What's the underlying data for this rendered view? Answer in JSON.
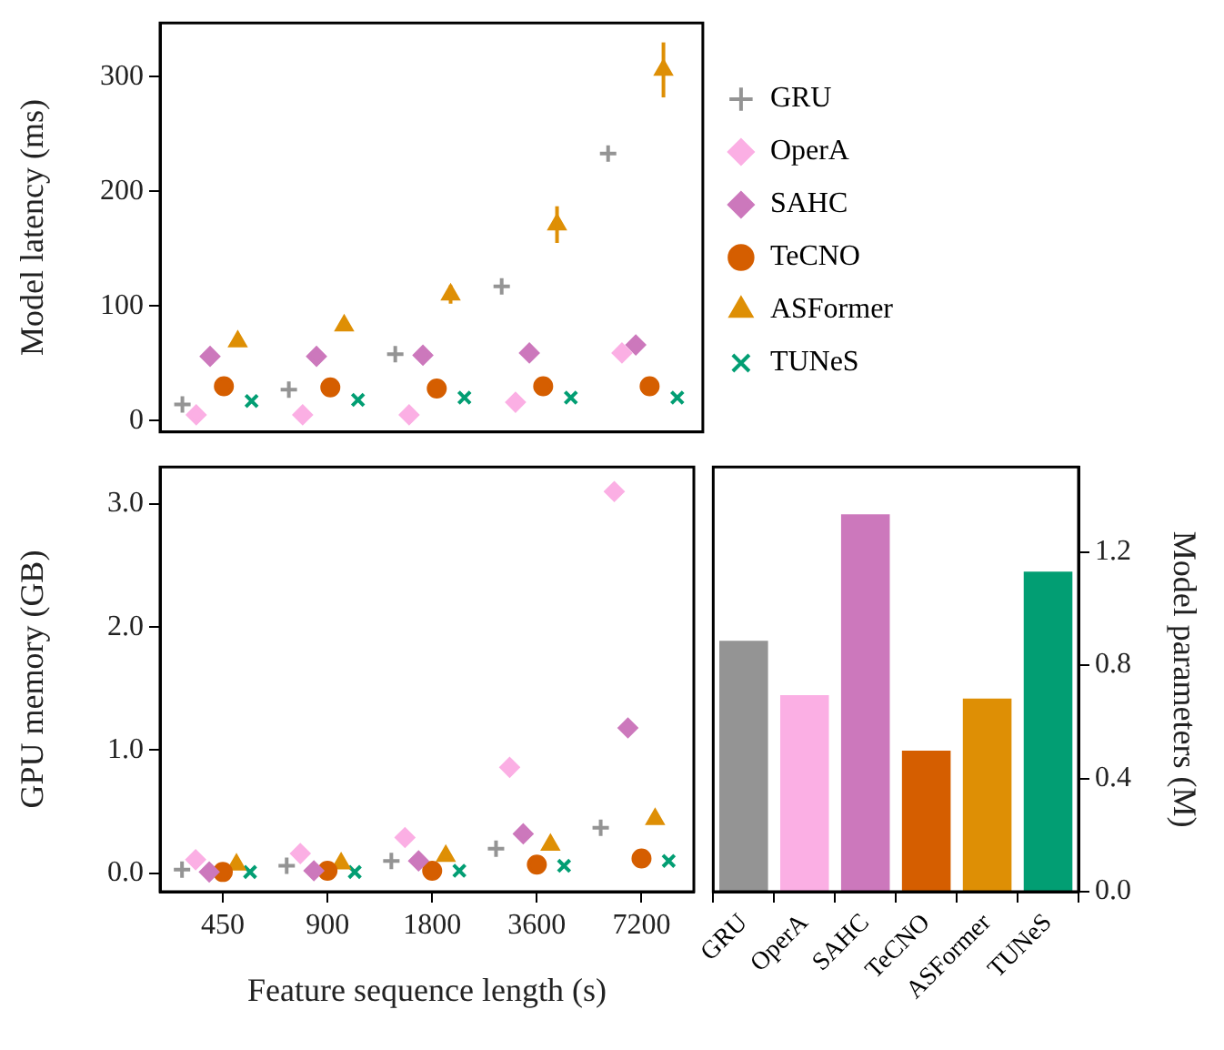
{
  "chart_data": [
    {
      "type": "scatter",
      "ylabel": "Model latency (ms)",
      "categories": [
        "450",
        "900",
        "1800",
        "3600",
        "7200"
      ],
      "ylim": [
        -10,
        347
      ],
      "yticks": [
        0,
        100,
        200,
        300
      ],
      "grid": false,
      "legend": "right",
      "tick_labels": "y",
      "series": [
        {
          "name": "GRU",
          "color": "#949494",
          "marker": "cross",
          "values": [
            14,
            27,
            58,
            117,
            233
          ]
        },
        {
          "name": "OperA",
          "color": "#fbafe4",
          "marker": "diamond",
          "values": [
            5,
            5,
            5,
            16,
            59
          ]
        },
        {
          "name": "SAHC",
          "color": "#cc78bc",
          "marker": "diamond",
          "values": [
            56,
            56,
            57,
            59,
            66
          ]
        },
        {
          "name": "TeCNO",
          "color": "#d55e00",
          "marker": "circle",
          "values": [
            30,
            29,
            28,
            30,
            30
          ]
        },
        {
          "name": "ASFormer",
          "color": "#de8f05",
          "marker": "triangle",
          "values": [
            69,
            83,
            110,
            171,
            306
          ],
          "errors": [
            null,
            null,
            8,
            16,
            24
          ]
        },
        {
          "name": "TUNeS",
          "color": "#029e73",
          "marker": "x",
          "values": [
            17,
            18,
            20,
            20,
            20
          ]
        }
      ]
    },
    {
      "type": "scatter",
      "ylabel": "GPU memory (GB)",
      "xlabel": "Feature sequence length (s)",
      "categories": [
        "450",
        "900",
        "1800",
        "3600",
        "7200"
      ],
      "ylim": [
        -0.15,
        3.3
      ],
      "yticks": [
        {
          "value": 0,
          "label": "0.0"
        },
        {
          "value": 1,
          "label": "1.0"
        },
        {
          "value": 2,
          "label": "2.0"
        },
        {
          "value": 3,
          "label": "3.0"
        }
      ],
      "grid": false,
      "series": [
        {
          "color": "#949494",
          "marker": "cross",
          "values": [
            0.03,
            0.06,
            0.1,
            0.2,
            0.37
          ]
        },
        {
          "color": "#fbafe4",
          "marker": "diamond",
          "values": [
            0.11,
            0.16,
            0.29,
            0.86,
            3.1
          ]
        },
        {
          "color": "#cc78bc",
          "marker": "diamond",
          "values": [
            0.01,
            0.02,
            0.1,
            0.32,
            1.18
          ]
        },
        {
          "color": "#d55e00",
          "marker": "circle",
          "values": [
            0.01,
            0.02,
            0.02,
            0.07,
            0.12
          ]
        },
        {
          "color": "#de8f05",
          "marker": "triangle",
          "values": [
            0.07,
            0.08,
            0.14,
            0.23,
            0.44
          ]
        },
        {
          "color": "#029e73",
          "marker": "x",
          "values": [
            0.01,
            0.01,
            0.02,
            0.06,
            0.1
          ]
        }
      ]
    },
    {
      "type": "bar",
      "y2label": "Model parameters (M)",
      "categories": [
        "GRU",
        "OperA",
        "SAHC",
        "TeCNO",
        "ASFormer",
        "TUNeS"
      ],
      "y2lim": [
        0,
        1.5
      ],
      "y2ticks": [
        {
          "value": 0,
          "label": "0.0"
        },
        {
          "value": 0.4,
          "label": "0.4"
        },
        {
          "value": 0.8,
          "label": "0.8"
        },
        {
          "value": 1.2,
          "label": "1.2"
        }
      ],
      "grid": false,
      "series": [
        {
          "axis": "y2",
          "values": [
            0.886,
            0.694,
            1.333,
            0.498,
            0.682,
            1.13
          ],
          "colors": [
            "#949494",
            "#fbafe4",
            "#cc78bc",
            "#d55e00",
            "#de8f05",
            "#029e73"
          ]
        }
      ]
    }
  ]
}
